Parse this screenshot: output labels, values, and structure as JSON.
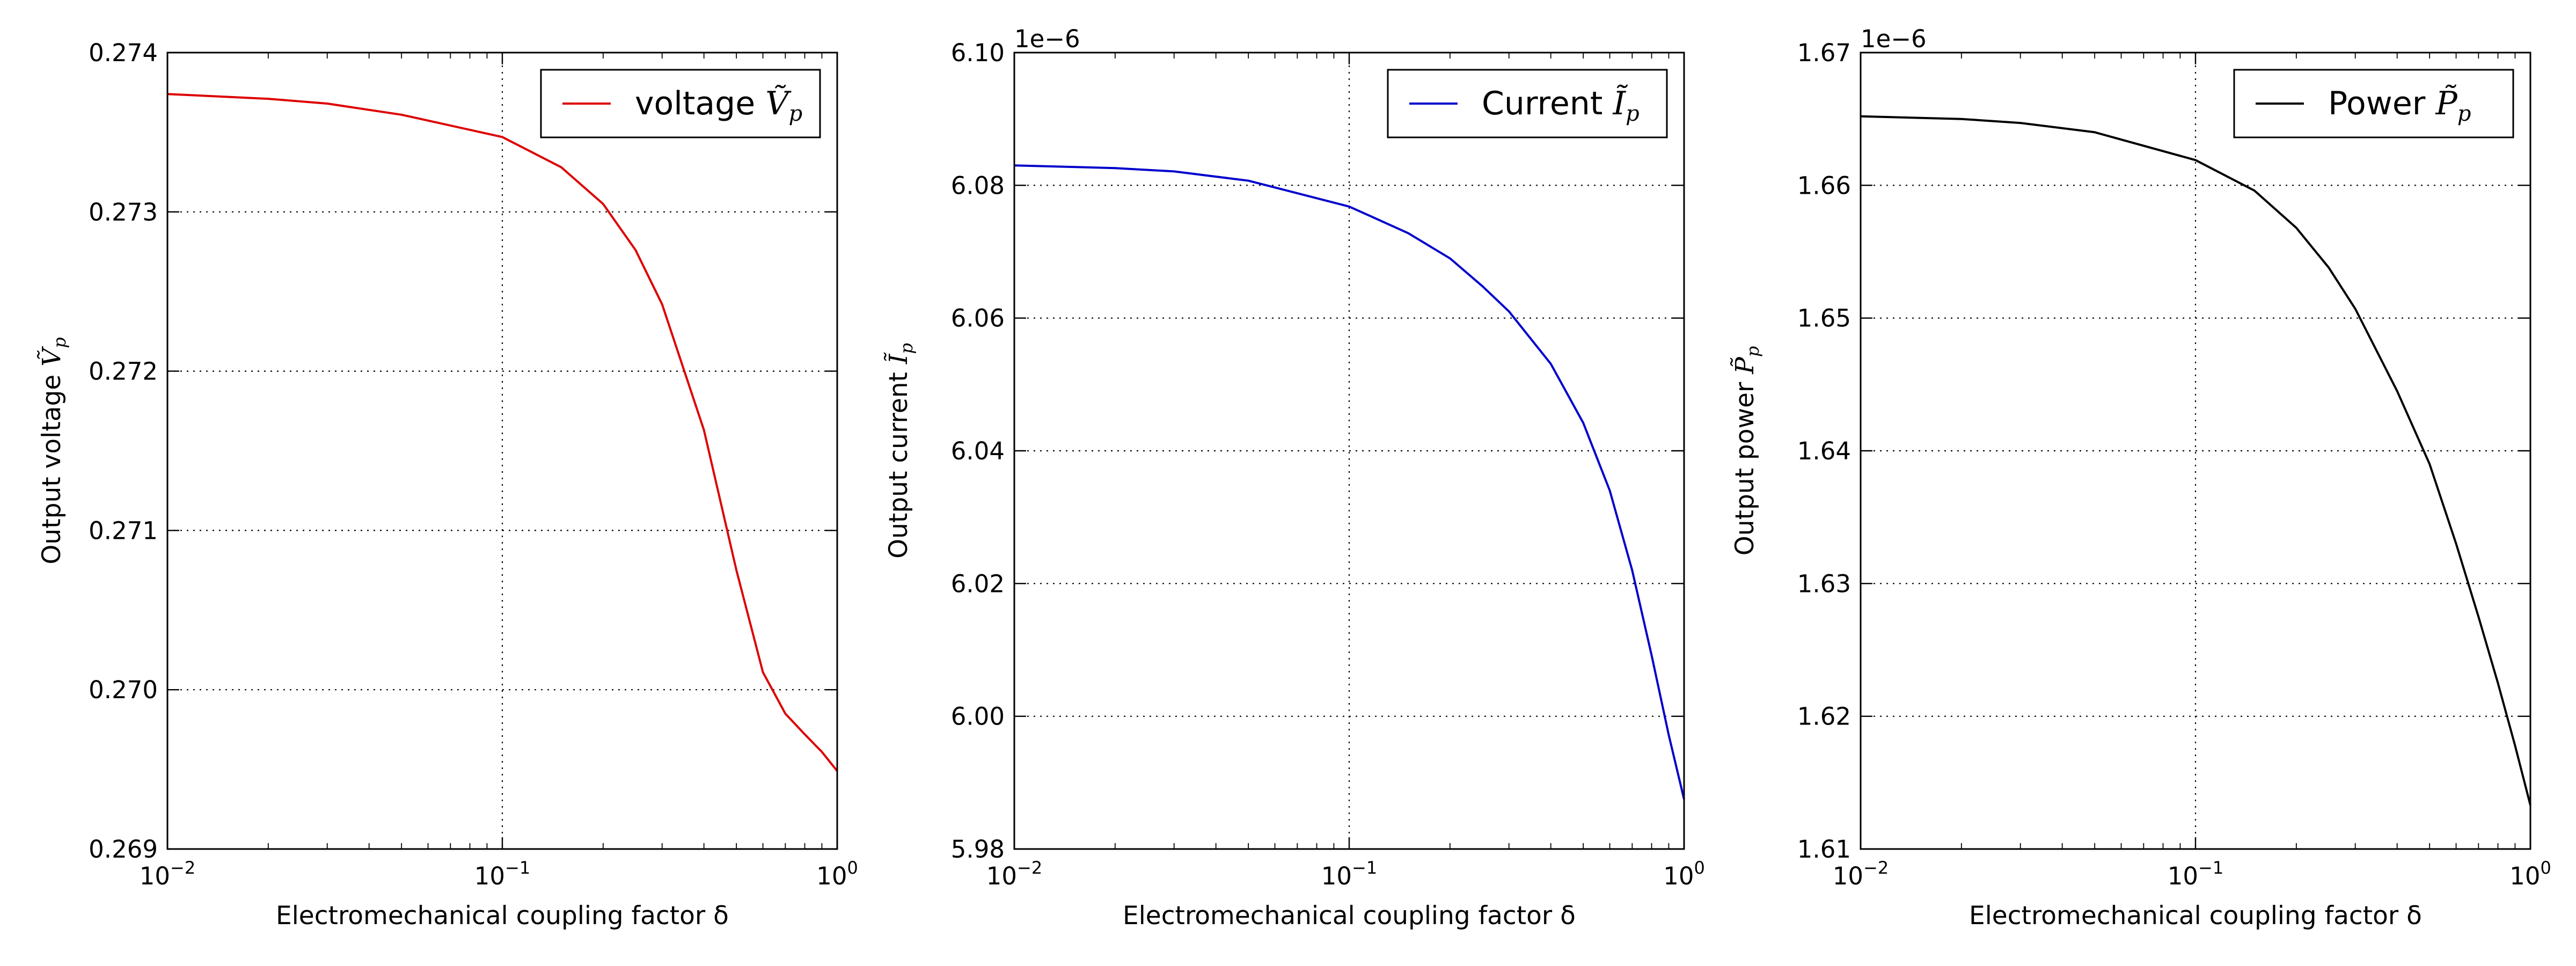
{
  "chart_data": [
    {
      "type": "line",
      "xlabel": "Electromechanical coupling factor δ",
      "ylabel": "Output voltage Ṽp",
      "x_scale": "log",
      "xlim": [
        0.01,
        1
      ],
      "ylim": [
        0.269,
        0.274
      ],
      "yoffset": "",
      "grid": true,
      "legend_position": "top-right",
      "x_ticks": [
        0.01,
        0.1,
        1
      ],
      "x_tick_labels": [
        {
          "base": "10",
          "exp": "−2"
        },
        {
          "base": "10",
          "exp": "−1"
        },
        {
          "base": "10",
          "exp": "0"
        }
      ],
      "y_ticks": [
        0.269,
        0.27,
        0.271,
        0.272,
        0.273,
        0.274
      ],
      "y_tick_labels": [
        "0.269",
        "0.270",
        "0.271",
        "0.272",
        "0.273",
        "0.274"
      ],
      "series": [
        {
          "name": "voltage Ṽp",
          "color": "#dd0000",
          "x": [
            0.01,
            0.02,
            0.03,
            0.05,
            0.1,
            0.15,
            0.2,
            0.25,
            0.3,
            0.4,
            0.5,
            0.6,
            0.7,
            0.8,
            0.9,
            1.0
          ],
          "y": [
            0.27374,
            0.27371,
            0.27368,
            0.27361,
            0.27347,
            0.27328,
            0.27305,
            0.27276,
            0.27242,
            0.27163,
            0.27075,
            0.27011,
            0.26985,
            0.26972,
            0.26961,
            0.26949
          ]
        }
      ]
    },
    {
      "type": "line",
      "xlabel": "Electromechanical coupling factor δ",
      "ylabel": "Output current Ĩp",
      "x_scale": "log",
      "xlim": [
        0.01,
        1
      ],
      "ylim": [
        5.98,
        6.1
      ],
      "yoffset": "1e−6",
      "grid": true,
      "legend_position": "top-right",
      "x_ticks": [
        0.01,
        0.1,
        1
      ],
      "x_tick_labels": [
        {
          "base": "10",
          "exp": "−2"
        },
        {
          "base": "10",
          "exp": "−1"
        },
        {
          "base": "10",
          "exp": "0"
        }
      ],
      "y_ticks": [
        5.98,
        6.0,
        6.02,
        6.04,
        6.06,
        6.08,
        6.1
      ],
      "y_tick_labels": [
        "5.98",
        "6.00",
        "6.02",
        "6.04",
        "6.06",
        "6.08",
        "6.10"
      ],
      "series": [
        {
          "name": "Current Ĩp",
          "color": "#0000cc",
          "x": [
            0.01,
            0.02,
            0.03,
            0.05,
            0.1,
            0.15,
            0.2,
            0.25,
            0.3,
            0.4,
            0.5,
            0.6,
            0.7,
            0.8,
            0.9,
            1.0
          ],
          "y": [
            6.083,
            6.0826,
            6.0821,
            6.0807,
            6.0768,
            6.0728,
            6.069,
            6.0648,
            6.061,
            6.0531,
            6.0442,
            6.034,
            6.022,
            6.0092,
            5.9972,
            5.9875
          ]
        }
      ]
    },
    {
      "type": "line",
      "xlabel": "Electromechanical coupling factor δ",
      "ylabel": "Output power P̃p",
      "x_scale": "log",
      "xlim": [
        0.01,
        1
      ],
      "ylim": [
        1.61,
        1.67
      ],
      "yoffset": "1e−6",
      "grid": true,
      "legend_position": "top-right",
      "x_ticks": [
        0.01,
        0.1,
        1
      ],
      "x_tick_labels": [
        {
          "base": "10",
          "exp": "−2"
        },
        {
          "base": "10",
          "exp": "−1"
        },
        {
          "base": "10",
          "exp": "0"
        }
      ],
      "y_ticks": [
        1.61,
        1.62,
        1.63,
        1.64,
        1.65,
        1.66,
        1.67
      ],
      "y_tick_labels": [
        "1.61",
        "1.62",
        "1.63",
        "1.64",
        "1.65",
        "1.66",
        "1.67"
      ],
      "series": [
        {
          "name": "Power P̃p",
          "color": "#000000",
          "x": [
            0.01,
            0.02,
            0.03,
            0.05,
            0.1,
            0.15,
            0.2,
            0.25,
            0.3,
            0.4,
            0.5,
            0.6,
            0.7,
            0.8,
            0.9,
            1.0
          ],
          "y": [
            1.6652,
            1.665,
            1.6647,
            1.664,
            1.6619,
            1.6596,
            1.6568,
            1.6538,
            1.6507,
            1.6445,
            1.639,
            1.633,
            1.6275,
            1.6225,
            1.6178,
            1.6133
          ]
        }
      ]
    }
  ]
}
